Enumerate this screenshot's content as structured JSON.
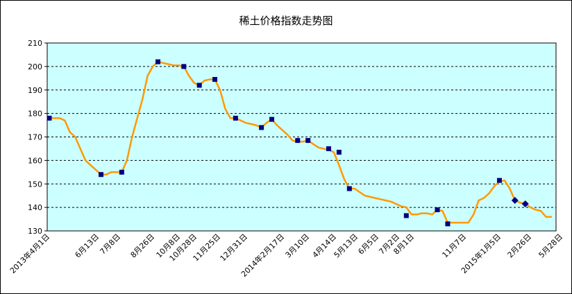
{
  "chart_data": {
    "type": "line",
    "title": "稀土价格指数走势图",
    "xlabel": "",
    "ylabel": "",
    "ylim": [
      130,
      210
    ],
    "yticks": [
      130,
      140,
      150,
      160,
      170,
      180,
      190,
      200,
      210
    ],
    "grid": true,
    "legend": "none",
    "colors": {
      "plot_bg": "#ccffff",
      "line": "#ff9900",
      "marker": "#000080",
      "grid": "#000000"
    },
    "x_labels": [
      "2013年4月1日",
      "6月13日",
      "7月8日",
      "8月26日",
      "10月8日",
      "10月28日",
      "11月25日",
      "12月31日",
      "2014年2月17日",
      "3月10日",
      "4月14日",
      "5月13日",
      "6月5日",
      "7月2日",
      "8月1日",
      "11月7日",
      "2015年1月5日",
      "2月26日",
      "5月28日"
    ],
    "series": [
      {
        "points": [
          [
            0,
            178
          ],
          [
            1,
            178
          ],
          [
            2,
            178
          ],
          [
            3,
            177
          ],
          [
            4,
            172
          ],
          [
            5,
            170
          ],
          [
            6,
            165
          ],
          [
            7,
            160
          ],
          [
            8,
            158
          ],
          [
            9,
            156
          ],
          [
            10,
            154
          ],
          [
            11,
            154
          ],
          [
            12,
            155
          ],
          [
            13,
            155
          ],
          [
            14,
            155
          ],
          [
            15,
            160
          ],
          [
            16,
            170
          ],
          [
            17,
            178
          ],
          [
            18,
            186
          ],
          [
            19,
            196
          ],
          [
            20,
            200
          ],
          [
            21,
            202
          ],
          [
            22,
            201.5
          ],
          [
            23,
            201
          ],
          [
            24,
            200.5
          ],
          [
            25,
            200.5
          ],
          [
            26,
            200
          ],
          [
            27,
            196
          ],
          [
            28,
            193
          ],
          [
            29,
            192
          ],
          [
            30,
            194
          ],
          [
            31,
            194.5
          ],
          [
            32,
            194.5
          ],
          [
            33,
            190
          ],
          [
            34,
            182
          ],
          [
            35,
            178
          ],
          [
            36,
            178
          ],
          [
            37,
            177
          ],
          [
            38,
            176
          ],
          [
            39,
            175.5
          ],
          [
            40,
            175
          ],
          [
            41,
            174
          ],
          [
            42,
            176
          ],
          [
            43,
            177.5
          ],
          [
            44,
            175
          ],
          [
            45,
            173
          ],
          [
            46,
            171
          ],
          [
            47,
            168.5
          ],
          [
            48,
            168
          ],
          [
            49,
            168
          ],
          [
            50,
            168.5
          ],
          [
            51,
            167
          ],
          [
            52,
            165.5
          ],
          [
            53,
            165
          ],
          [
            54,
            164.5
          ],
          [
            55,
            163.5
          ],
          [
            56,
            158
          ],
          [
            57,
            152
          ],
          [
            58,
            148
          ],
          [
            59,
            148
          ],
          [
            60,
            146.5
          ],
          [
            61,
            145
          ],
          [
            62,
            144.5
          ],
          [
            63,
            144
          ],
          [
            64,
            143.5
          ],
          [
            65,
            143
          ],
          [
            66,
            142.5
          ],
          [
            67,
            141.5
          ],
          [
            68,
            140.5
          ],
          [
            69,
            140
          ],
          [
            70,
            137
          ],
          [
            71,
            137
          ],
          [
            72,
            137.5
          ],
          [
            73,
            137.5
          ],
          [
            74,
            137
          ],
          [
            75,
            139
          ],
          [
            76,
            138.5
          ],
          [
            77,
            133.5
          ],
          [
            78,
            133.5
          ],
          [
            79,
            133.5
          ],
          [
            80,
            133.5
          ],
          [
            81,
            133.5
          ],
          [
            82,
            137
          ],
          [
            83,
            143
          ],
          [
            84,
            144
          ],
          [
            85,
            146
          ],
          [
            86,
            149
          ],
          [
            87,
            151
          ],
          [
            88,
            151.5
          ],
          [
            89,
            148
          ],
          [
            90,
            143
          ],
          [
            91,
            142
          ],
          [
            92,
            141.5
          ],
          [
            93,
            140
          ],
          [
            94,
            139
          ],
          [
            95,
            138.5
          ],
          [
            96,
            136
          ],
          [
            97,
            136
          ]
        ],
        "square_markers": [
          [
            0,
            178
          ],
          [
            10,
            154
          ],
          [
            14,
            155
          ],
          [
            21,
            202
          ],
          [
            26,
            200
          ],
          [
            29,
            192
          ],
          [
            32,
            194.5
          ],
          [
            36,
            178
          ],
          [
            41,
            174
          ],
          [
            43,
            177.5
          ],
          [
            48,
            168.5
          ],
          [
            50,
            168.5
          ],
          [
            54,
            165
          ],
          [
            56,
            163.5
          ],
          [
            58,
            148
          ],
          [
            69,
            136.5
          ],
          [
            75,
            139
          ],
          [
            77,
            133
          ],
          [
            87,
            151.5
          ]
        ],
        "diamond_markers": [
          [
            90,
            143
          ],
          [
            92,
            141.5
          ]
        ]
      }
    ]
  }
}
